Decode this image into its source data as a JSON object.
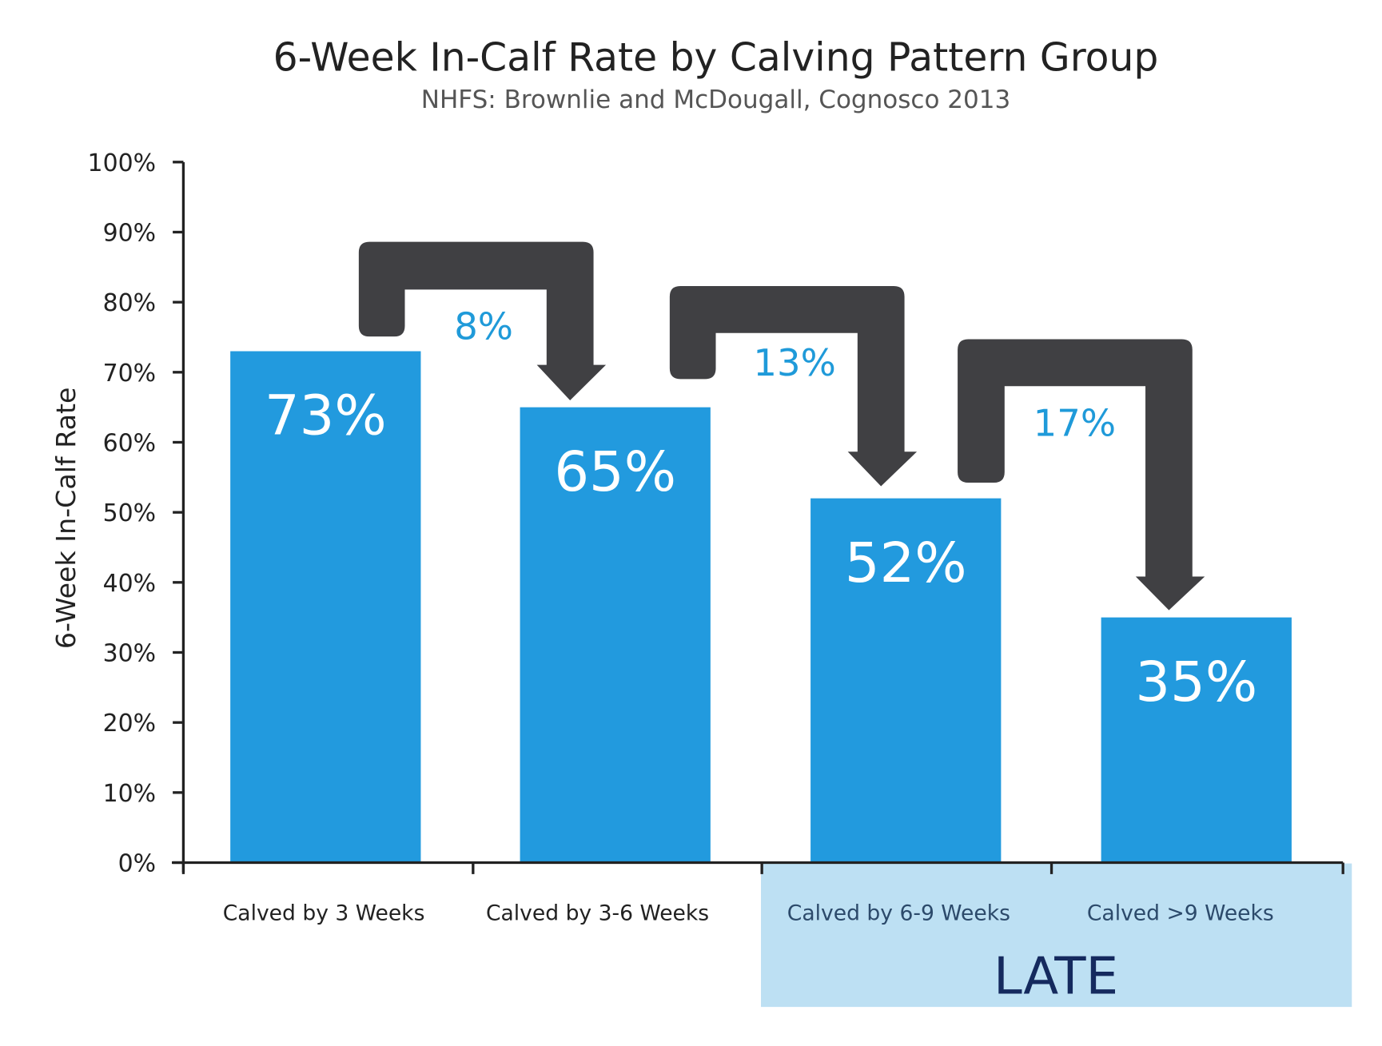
{
  "chart_data": {
    "type": "bar",
    "title": "6-Week In-Calf Rate by Calving Pattern Group",
    "subtitle": "NHFS: Brownlie and McDougall, Cognosco 2013",
    "ylabel": "6-Week In-Calf Rate",
    "xlabel": "",
    "ylim": [
      0,
      100
    ],
    "yticks": [
      "0%",
      "10%",
      "20%",
      "30%",
      "40%",
      "50%",
      "60%",
      "70%",
      "80%",
      "90%",
      "100%"
    ],
    "categories": [
      "Calved by 3 Weeks",
      "Calved by 3-6 Weeks",
      "Calved by 6-9 Weeks",
      "Calved >9 Weeks"
    ],
    "values": [
      73,
      65,
      52,
      35
    ],
    "data_labels": [
      "73%",
      "65%",
      "52%",
      "35%"
    ],
    "annotations": {
      "drops": [
        "8%",
        "13%",
        "17%"
      ],
      "group_label": "LATE",
      "group_categories": [
        "Calved by 6-9 Weeks",
        "Calved >9 Weeks"
      ]
    },
    "grid": false,
    "legend": "none",
    "colors": {
      "bar": "#229ade",
      "arrow": "#404043",
      "drop_label": "#1f9ad9",
      "late_box": "#bde0f3",
      "late_text": "#152a5e"
    }
  }
}
